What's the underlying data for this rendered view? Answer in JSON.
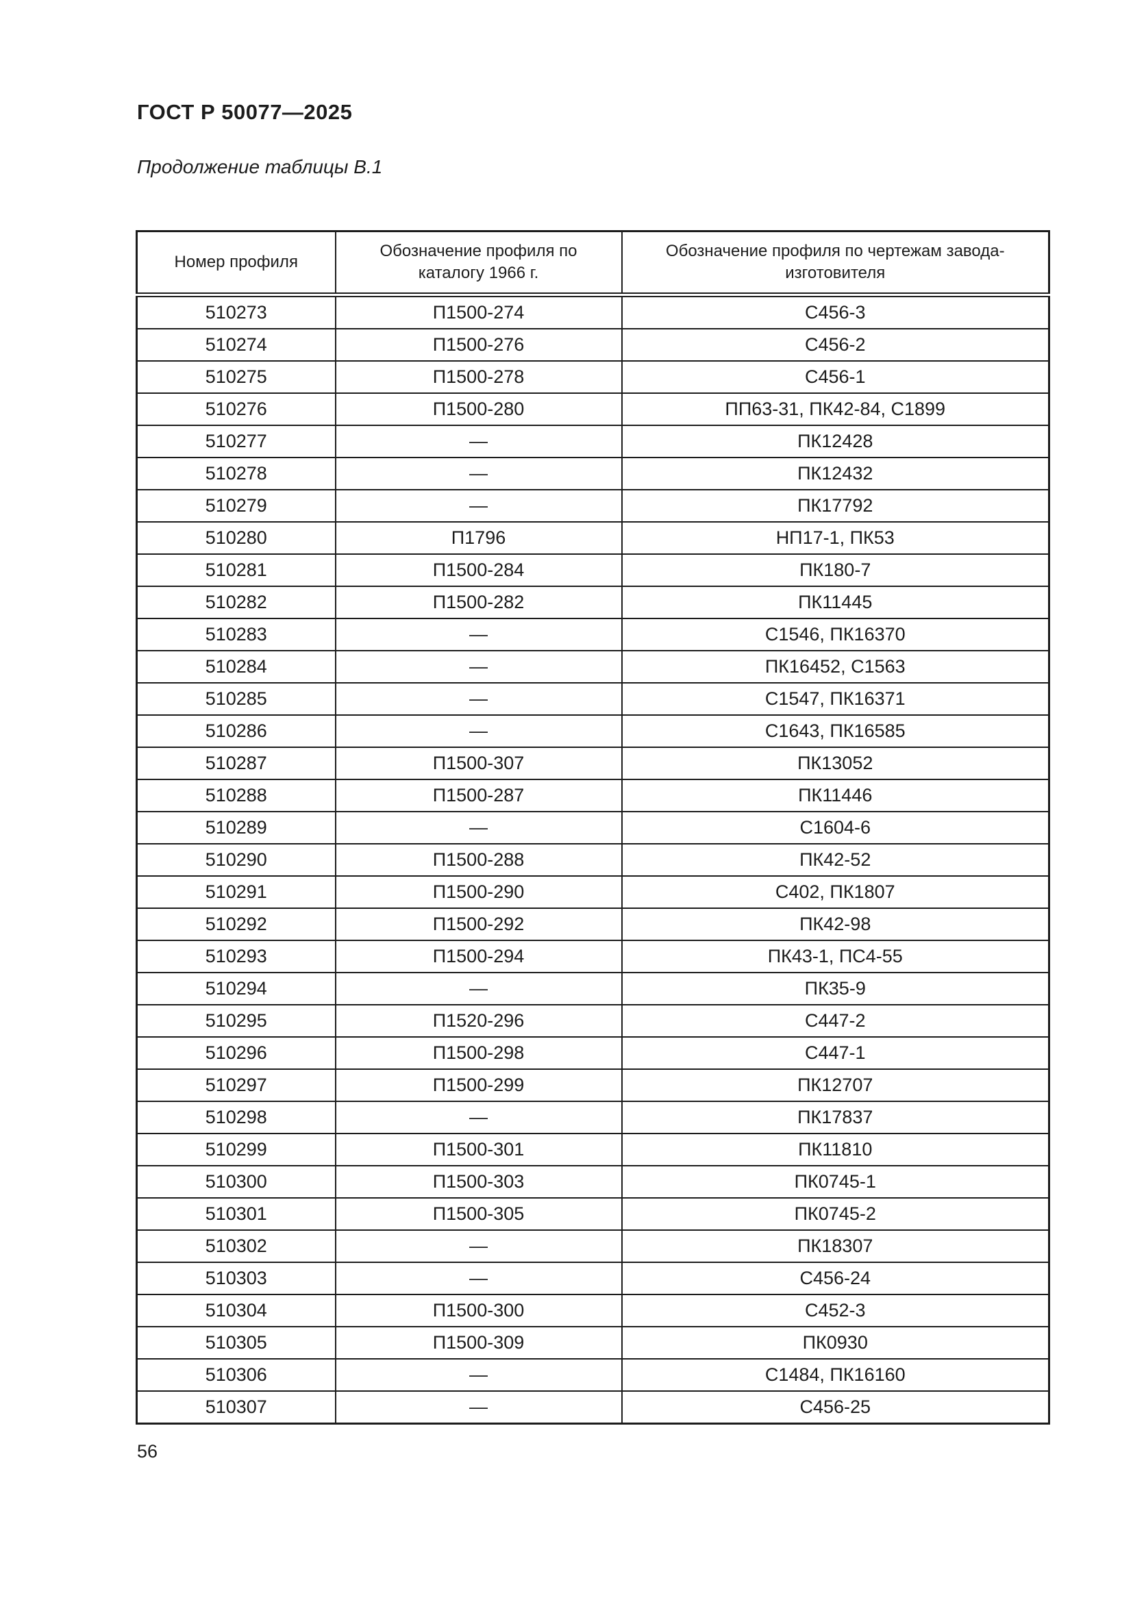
{
  "page": {
    "standard_code": "ГОСТ Р 50077—2025",
    "table_caption": "Продолжение таблицы В.1",
    "page_number": "56"
  },
  "table": {
    "columns": [
      "Номер профиля",
      "Обозначение профиля по каталогу 1966 г.",
      "Обозначение профиля по чертежам завода-изготовителя"
    ],
    "empty_marker": "—",
    "rows": [
      [
        "510273",
        "П1500-274",
        "С456-3"
      ],
      [
        "510274",
        "П1500-276",
        "С456-2"
      ],
      [
        "510275",
        "П1500-278",
        "С456-1"
      ],
      [
        "510276",
        "П1500-280",
        "ПП63-31, ПК42-84, С1899"
      ],
      [
        "510277",
        "—",
        "ПК12428"
      ],
      [
        "510278",
        "—",
        "ПК12432"
      ],
      [
        "510279",
        "—",
        "ПК17792"
      ],
      [
        "510280",
        "П1796",
        "НП17-1, ПК53"
      ],
      [
        "510281",
        "П1500-284",
        "ПК180-7"
      ],
      [
        "510282",
        "П1500-282",
        "ПК11445"
      ],
      [
        "510283",
        "—",
        "С1546, ПК16370"
      ],
      [
        "510284",
        "—",
        "ПК16452, С1563"
      ],
      [
        "510285",
        "—",
        "С1547, ПК16371"
      ],
      [
        "510286",
        "—",
        "С1643, ПК16585"
      ],
      [
        "510287",
        "П1500-307",
        "ПК13052"
      ],
      [
        "510288",
        "П1500-287",
        "ПК11446"
      ],
      [
        "510289",
        "—",
        "С1604-6"
      ],
      [
        "510290",
        "П1500-288",
        "ПК42-52"
      ],
      [
        "510291",
        "П1500-290",
        "С402, ПК1807"
      ],
      [
        "510292",
        "П1500-292",
        "ПК42-98"
      ],
      [
        "510293",
        "П1500-294",
        "ПК43-1, ПС4-55"
      ],
      [
        "510294",
        "—",
        "ПК35-9"
      ],
      [
        "510295",
        "П1520-296",
        "С447-2"
      ],
      [
        "510296",
        "П1500-298",
        "С447-1"
      ],
      [
        "510297",
        "П1500-299",
        "ПК12707"
      ],
      [
        "510298",
        "—",
        "ПК17837"
      ],
      [
        "510299",
        "П1500-301",
        "ПК11810"
      ],
      [
        "510300",
        "П1500-303",
        "ПК0745-1"
      ],
      [
        "510301",
        "П1500-305",
        "ПК0745-2"
      ],
      [
        "510302",
        "—",
        "ПК18307"
      ],
      [
        "510303",
        "—",
        "С456-24"
      ],
      [
        "510304",
        "П1500-300",
        "С452-3"
      ],
      [
        "510305",
        "П1500-309",
        "ПК0930"
      ],
      [
        "510306",
        "—",
        "С1484, ПК16160"
      ],
      [
        "510307",
        "—",
        "С456-25"
      ]
    ]
  }
}
